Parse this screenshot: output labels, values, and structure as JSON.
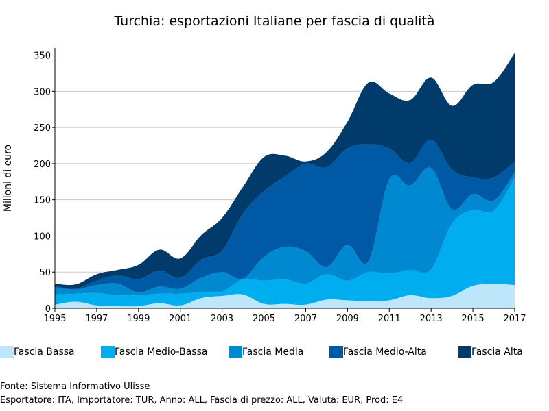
{
  "chart_data": {
    "type": "area",
    "stacked": true,
    "title": "Turchia: esportazioni Italiane per fascia di qualità",
    "xlabel": "",
    "ylabel": "Milioni di euro",
    "xlim": [
      1995,
      2017
    ],
    "ylim": [
      0,
      360
    ],
    "x_ticks": [
      "1995",
      "1997",
      "1999",
      "2001",
      "2003",
      "2005",
      "2007",
      "2009",
      "2011",
      "2013",
      "2015",
      "2017"
    ],
    "y_ticks": [
      "0",
      "50",
      "100",
      "150",
      "200",
      "250",
      "300",
      "350"
    ],
    "grid": "horizontal",
    "legend_position": "bottom",
    "x": [
      1995,
      1996,
      1997,
      1998,
      1999,
      2000,
      2001,
      2002,
      2003,
      2004,
      2005,
      2006,
      2007,
      2008,
      2009,
      2010,
      2011,
      2012,
      2013,
      2014,
      2015,
      2016,
      2017
    ],
    "series": [
      {
        "name": "Fascia Bassa",
        "color": "#bde6fa",
        "values": [
          5,
          9,
          4,
          3,
          3,
          7,
          4,
          14,
          17,
          19,
          6,
          6,
          5,
          12,
          11,
          10,
          11,
          18,
          14,
          17,
          31,
          34,
          32
        ]
      },
      {
        "name": "Fascia Medio-Bassa",
        "color": "#00aeef",
        "values": [
          14,
          11,
          17,
          15,
          15,
          13,
          16,
          8,
          6,
          21,
          32,
          34,
          29,
          35,
          27,
          40,
          37,
          35,
          40,
          100,
          105,
          101,
          148
        ]
      },
      {
        "name": "Fascia Media",
        "color": "#0089d0",
        "values": [
          10,
          6,
          11,
          16,
          4,
          10,
          7,
          20,
          27,
          1,
          33,
          45,
          45,
          10,
          50,
          15,
          130,
          117,
          140,
          20,
          22,
          14,
          8
        ]
      },
      {
        "name": "Fascia Medio-Alta",
        "color": "#0059a4",
        "values": [
          2,
          1,
          6,
          11,
          18,
          22,
          15,
          25,
          30,
          90,
          91,
          97,
          121,
          138,
          133,
          162,
          43,
          31,
          39,
          55,
          23,
          32,
          15
        ]
      },
      {
        "name": "Fascia Alta",
        "color": "#003b6b",
        "values": [
          3,
          6,
          9,
          8,
          20,
          29,
          27,
          34,
          45,
          37,
          47,
          29,
          3,
          21,
          37,
          85,
          76,
          87,
          86,
          88,
          128,
          132,
          150
        ]
      }
    ]
  },
  "footer": {
    "source": "Fonte: Sistema Informativo Ulisse",
    "params": "Esportatore: ITA, Importatore: TUR, Anno: ALL, Fascia di prezzo: ALL, Valuta: EUR, Prod: E4"
  }
}
